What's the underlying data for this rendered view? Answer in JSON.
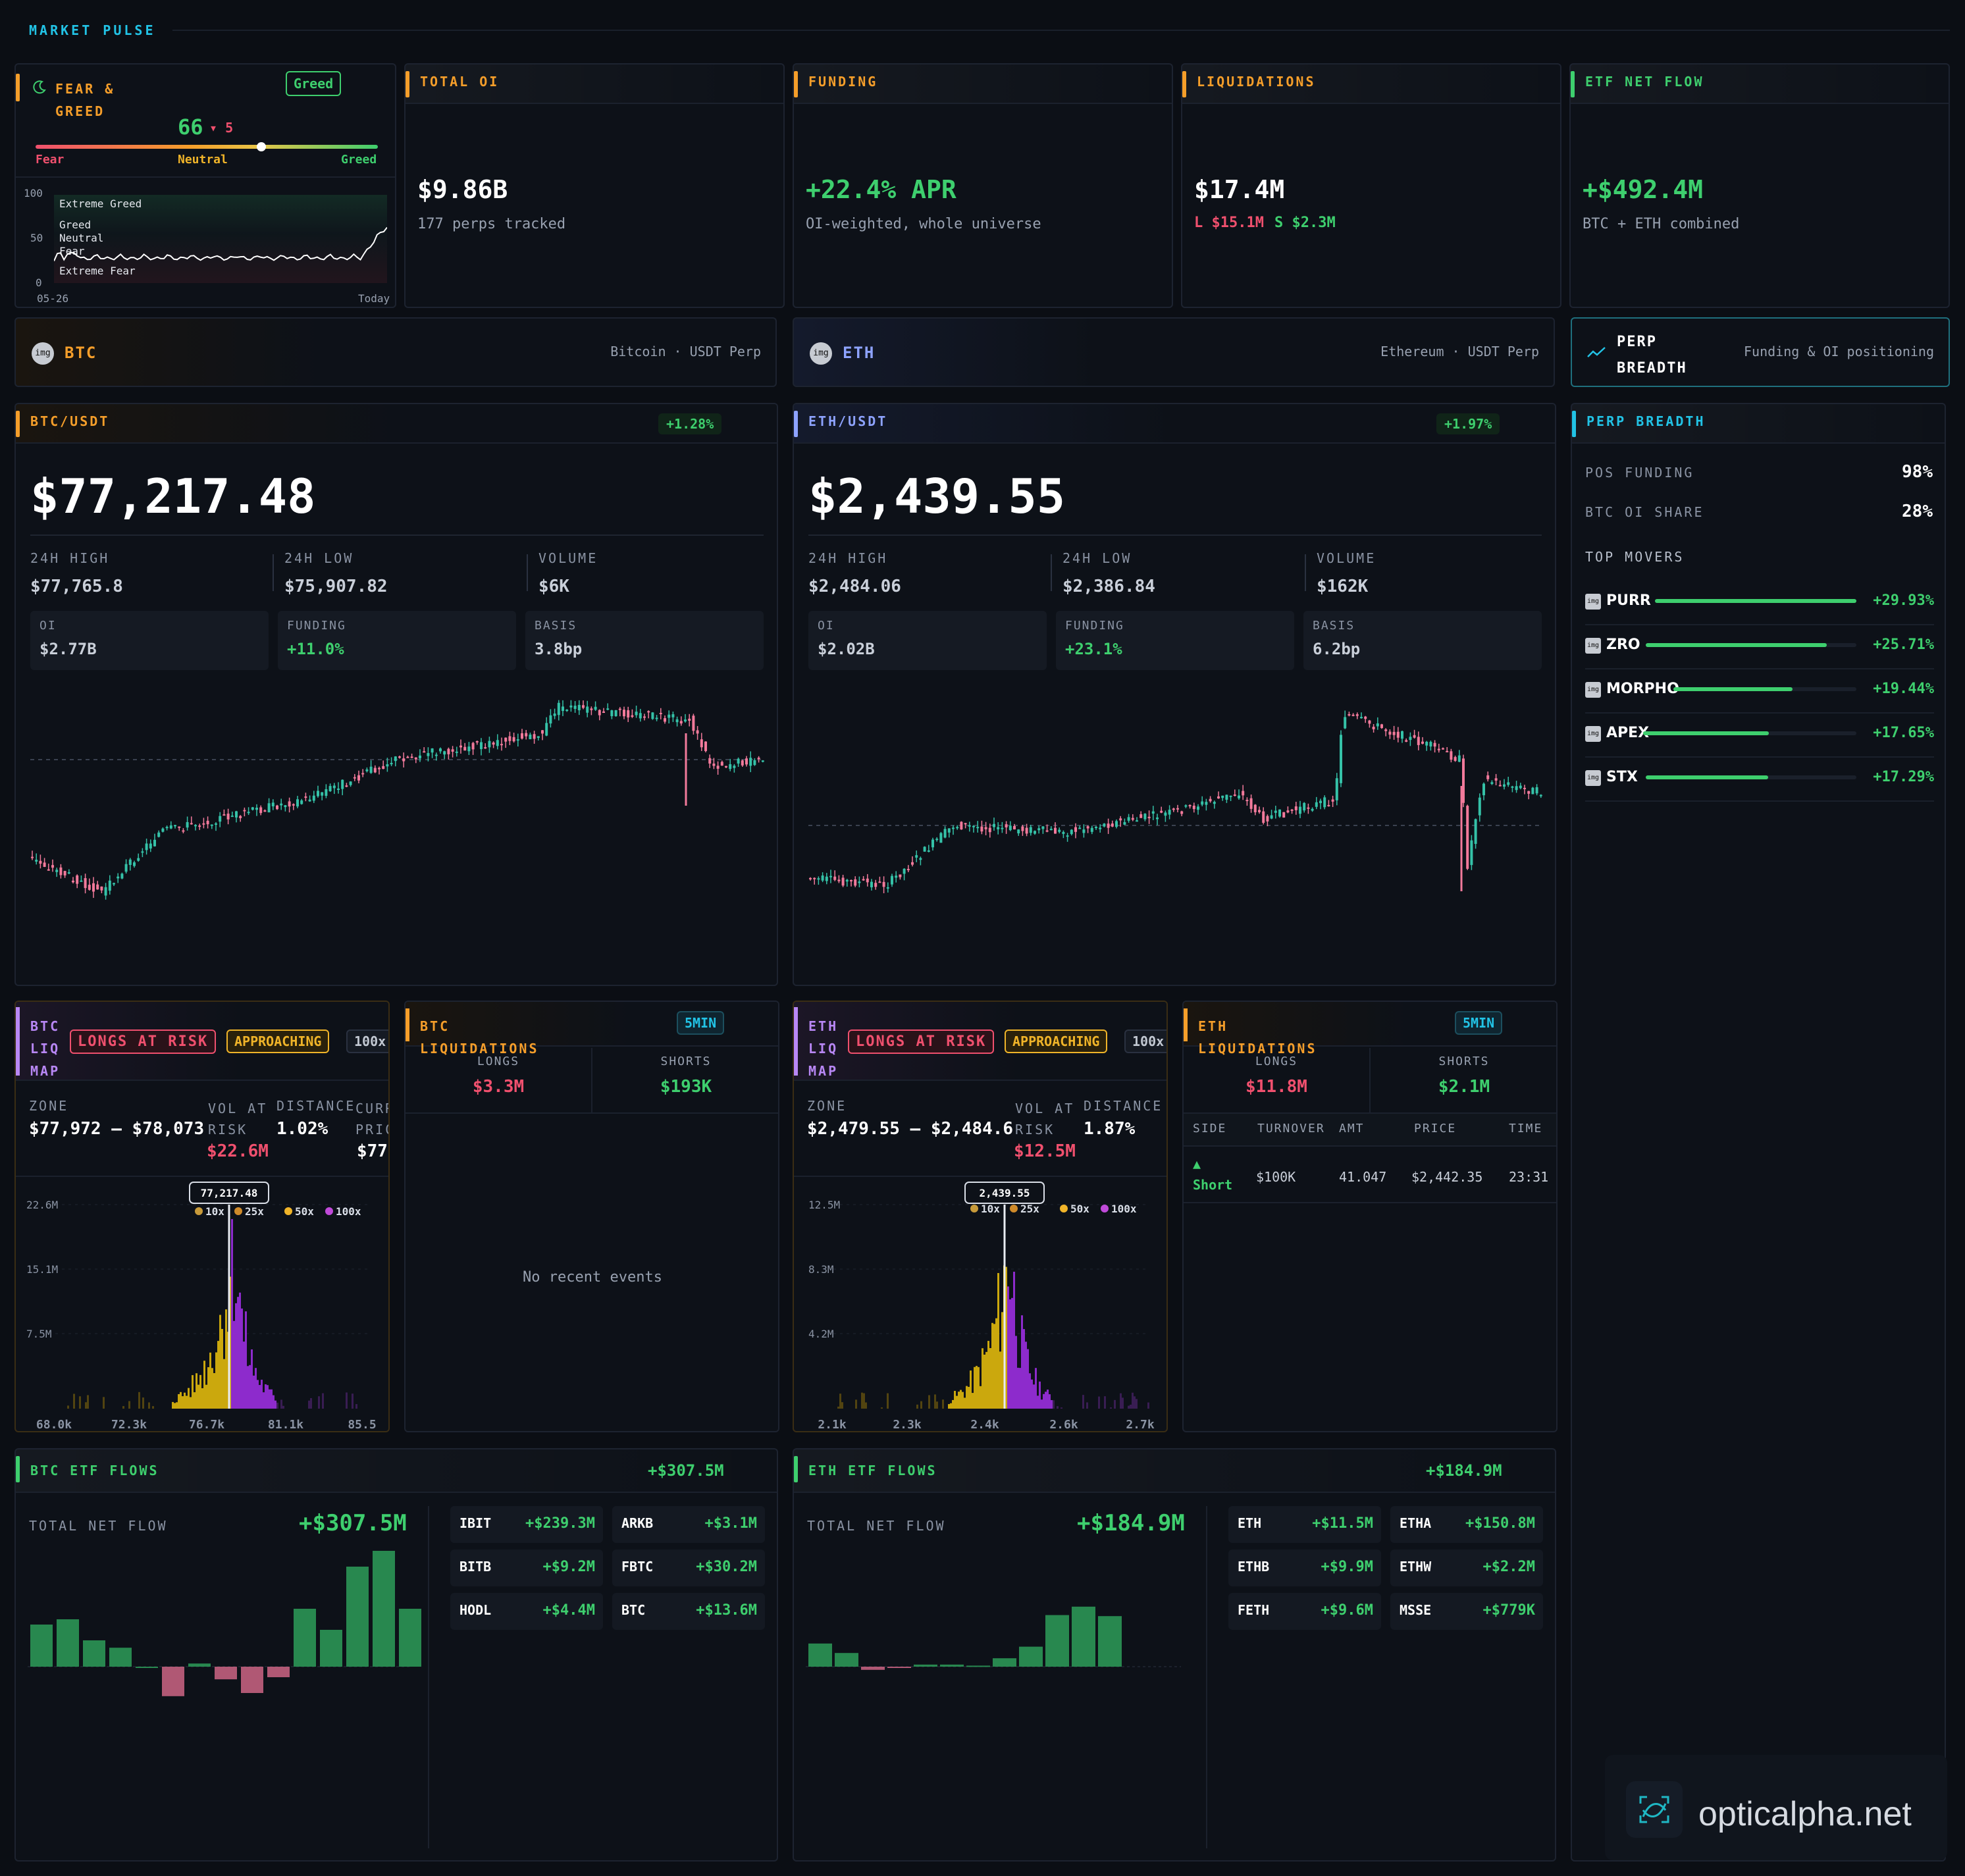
{
  "section": "MARKET PULSE",
  "fng": {
    "title": "FEAR & GREED",
    "badge": "Greed",
    "value": "66",
    "change": "▾ 5",
    "scale": [
      "Fear",
      "Neutral",
      "Greed"
    ],
    "level": 0.66,
    "axis": [
      "100",
      "50",
      "0"
    ],
    "zones": [
      "Extreme Greed",
      "Greed",
      "Neutral",
      "Fear",
      "Extreme Fear"
    ],
    "start": "05-26",
    "end": "Today"
  },
  "tiles": [
    {
      "title": "TOTAL OI",
      "value": "$9.86B",
      "sub": "177 perps tracked",
      "accent": "#f59e2a",
      "color": "#ffffff"
    },
    {
      "title": "FUNDING",
      "value": "+22.4% APR",
      "sub": "OI-weighted, whole universe",
      "accent": "#f59e2a",
      "color": "#3ecf6e"
    },
    {
      "title": "LIQUIDATIONS",
      "value": "$17.4M",
      "sub_long": "L $15.1M",
      "sub_short": "S $2.3M",
      "accent": "#f59e2a",
      "color": "#ffffff"
    },
    {
      "title": "ETF NET FLOW",
      "value": "+$492.4M",
      "sub": "BTC + ETH combined",
      "accent": "#3ecf6e",
      "color": "#3ecf6e"
    }
  ],
  "assets": [
    {
      "sym": "BTC",
      "name": "Bitcoin · USDT Perp",
      "pair": "BTC/USDT",
      "chg": "+1.28%",
      "price": "$77,217.48",
      "high": "$77,765.8",
      "low": "$75,907.82",
      "vol": "$6K",
      "oi": "$2.77B",
      "funding": "+11.0%",
      "basis": "3.8bp",
      "liq": {
        "t1": "BTC",
        "t2": "LIQ",
        "t3": "MAP",
        "risk": "LONGS AT RISK",
        "state": "APPROACHING",
        "lev": "100x",
        "zone": "$77,972 – $78,073",
        "var": "$22.6M",
        "dist": "1.02%",
        "cur": "$77",
        "curlabel": "CURR",
        "curlabel2": "PRIC",
        "marker": "77,217.48",
        "y": [
          "22.6M",
          "15.1M",
          "7.5M"
        ],
        "x": [
          "68.0k",
          "72.3k",
          "76.7k",
          "81.1k",
          "85.5"
        ]
      },
      "liqs": {
        "title": "BTC LIQUIDATIONS",
        "badge": "5MIN",
        "longs": "$3.3M",
        "shorts": "$193K",
        "empty": "No recent events"
      },
      "etf": {
        "title": "BTC ETF FLOWS",
        "total": "+$307.5M",
        "big": "+$307.5M",
        "flows": [
          {
            "n": "IBIT",
            "v": "+$239.3M"
          },
          {
            "n": "ARKB",
            "v": "+$3.1M"
          },
          {
            "n": "BITB",
            "v": "+$9.2M"
          },
          {
            "n": "FBTC",
            "v": "+$30.2M"
          },
          {
            "n": "HODL",
            "v": "+$4.4M"
          },
          {
            "n": "BTC",
            "v": "+$13.6M"
          }
        ],
        "bars": [
          40,
          45,
          25,
          18,
          0,
          -28,
          3,
          -12,
          -25,
          -10,
          55,
          35,
          95,
          110,
          55
        ]
      }
    },
    {
      "sym": "ETH",
      "name": "Ethereum · USDT Perp",
      "pair": "ETH/USDT",
      "chg": "+1.97%",
      "price": "$2,439.55",
      "high": "$2,484.06",
      "low": "$2,386.84",
      "vol": "$162K",
      "oi": "$2.02B",
      "funding": "+23.1%",
      "basis": "6.2bp",
      "liq": {
        "t1": "ETH",
        "t2": "LIQ",
        "t3": "MAP",
        "risk": "LONGS AT RISK",
        "state": "APPROACHING",
        "lev": "100x",
        "zone": "$2,479.55 – $2,484.6",
        "var": "$12.5M",
        "dist": "1.87%",
        "cur": "",
        "curlabel": "",
        "curlabel2": "",
        "marker": "2,439.55",
        "y": [
          "12.5M",
          "8.3M",
          "4.2M"
        ],
        "x": [
          "2.1k",
          "2.3k",
          "2.4k",
          "2.6k",
          "2.7k"
        ]
      },
      "liqs": {
        "title": "ETH LIQUIDATIONS",
        "badge": "5MIN",
        "longs": "$11.8M",
        "shorts": "$2.1M",
        "cols": [
          "SIDE",
          "TURNOVER",
          "AMT",
          "PRICE",
          "TIME"
        ],
        "row": {
          "side": "Short",
          "turnover": "$100K",
          "amt": "41.047",
          "price": "$2,442.35",
          "time": "23:31"
        }
      },
      "etf": {
        "title": "ETH ETF FLOWS",
        "total": "+$184.9M",
        "big": "+$184.9M",
        "flows": [
          {
            "n": "ETH",
            "v": "+$11.5M"
          },
          {
            "n": "ETHA",
            "v": "+$150.8M"
          },
          {
            "n": "ETHB",
            "v": "+$9.9M"
          },
          {
            "n": "ETHW",
            "v": "+$2.2M"
          },
          {
            "n": "FETH",
            "v": "+$9.6M"
          },
          {
            "n": "MSSE",
            "v": "+$779K"
          }
        ],
        "bars": [
          22,
          13,
          -3,
          -1,
          2,
          2,
          1,
          8,
          19,
          49,
          57,
          48,
          0,
          0,
          0
        ]
      }
    }
  ],
  "labels": {
    "high": "24H HIGH",
    "low": "24H LOW",
    "vol": "VOLUME",
    "oi": "OI",
    "funding": "FUNDING",
    "basis": "BASIS",
    "zone": "ZONE",
    "var": "VOL AT",
    "var2": "RISK",
    "dist": "DISTANCE",
    "longs": "LONGS",
    "shorts": "SHORTS",
    "tnf": "TOTAL NET FLOW",
    "img": "img",
    "legend": [
      "10x",
      "25x",
      "50x",
      "100x"
    ]
  },
  "perp": {
    "title": "PERP",
    "title2": "BREADTH",
    "desc": "Funding & OI positioning",
    "panel": "PERP BREADTH",
    "pos_label": "POS FUNDING",
    "pos": "98%",
    "share_label": "BTC OI SHARE",
    "share": "28%",
    "movers_label": "TOP MOVERS",
    "movers": [
      {
        "n": "PURR",
        "v": "+29.93%",
        "f": 1.0
      },
      {
        "n": "ZRO",
        "v": "+25.71%",
        "f": 0.86
      },
      {
        "n": "MORPHO",
        "v": "+19.44%",
        "f": 0.65
      },
      {
        "n": "APEX",
        "v": "+17.65%",
        "f": 0.59
      },
      {
        "n": "STX",
        "v": "+17.29%",
        "f": 0.58
      }
    ]
  },
  "brand": "opticalpha.net",
  "colors": {
    "bg": "#0b0e14",
    "green": "#3ecf6e",
    "red": "#f0506e",
    "orange": "#f59e2a",
    "cyan": "#22c3e6",
    "purple": "#b887f5"
  }
}
